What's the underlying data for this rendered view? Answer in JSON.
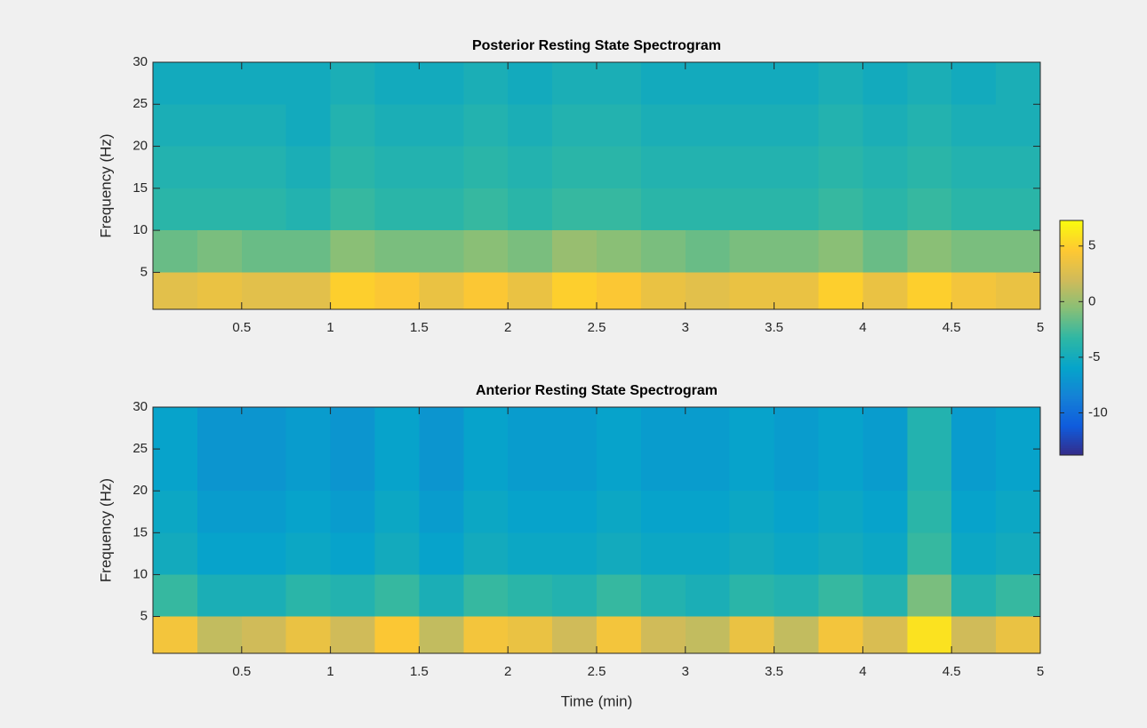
{
  "chart_data": [
    {
      "type": "heatmap",
      "title": "Posterior Resting State Spectrogram",
      "ylabel": "Frequency (Hz)",
      "xlim": [
        0,
        5
      ],
      "ylim": [
        0.6,
        30
      ],
      "xticks": [
        0.5,
        1,
        1.5,
        2,
        2.5,
        3,
        3.5,
        4,
        4.5,
        5
      ],
      "yticks": [
        5,
        10,
        15,
        20,
        25,
        30
      ],
      "xbins": [
        0,
        0.25,
        0.5,
        0.75,
        1,
        1.25,
        1.5,
        1.75,
        2,
        2.25,
        2.5,
        2.75,
        3,
        3.25,
        3.5,
        3.75,
        4,
        4.25,
        4.5,
        4.75,
        5
      ],
      "ybins": [
        0.6,
        5,
        10,
        15,
        20,
        25,
        30
      ],
      "colormap": "parula",
      "clim": [
        -13.8,
        7.3
      ],
      "colorbar_ticks": [
        -10,
        -5,
        0,
        5
      ],
      "values": [
        [
          3,
          3.5,
          3,
          3,
          5,
          4.5,
          3.5,
          4.5,
          3.5,
          5,
          4.5,
          3.5,
          3,
          3.5,
          3.5,
          5,
          3.5,
          5,
          4,
          3.5
        ],
        [
          -1.5,
          -1,
          -1.5,
          -1.5,
          -0.5,
          -1,
          -1,
          -0.5,
          -1,
          0,
          -0.5,
          -1,
          -1.5,
          -1,
          -1,
          -0.5,
          -1.5,
          -0.5,
          -1,
          -1
        ],
        [
          -3.5,
          -3.5,
          -3.5,
          -4,
          -3,
          -3.5,
          -3.5,
          -3,
          -3.5,
          -3,
          -3,
          -3.5,
          -3.5,
          -3.5,
          -3.5,
          -3,
          -3.5,
          -3,
          -3.5,
          -3.5
        ],
        [
          -4,
          -4,
          -4,
          -4.5,
          -3.5,
          -4,
          -4,
          -3.5,
          -4,
          -3.5,
          -3.5,
          -4,
          -4,
          -4,
          -4,
          -3.5,
          -4,
          -3.5,
          -4,
          -4
        ],
        [
          -4.5,
          -4.5,
          -4.5,
          -5,
          -4,
          -4.5,
          -4.5,
          -4,
          -4.5,
          -4,
          -4,
          -4.5,
          -4.5,
          -4.5,
          -4.5,
          -4,
          -4.5,
          -4,
          -4.5,
          -4.5
        ],
        [
          -5,
          -5,
          -5,
          -5,
          -4.5,
          -5,
          -5,
          -4.5,
          -5,
          -4.5,
          -4.5,
          -5,
          -5,
          -5,
          -5,
          -4.5,
          -5,
          -4.5,
          -5,
          -4.5
        ]
      ]
    },
    {
      "type": "heatmap",
      "title": "Anterior Resting State Spectrogram",
      "ylabel": "Frequency (Hz)",
      "xlabel": "Time (min)",
      "xlim": [
        0,
        5
      ],
      "ylim": [
        0.6,
        30
      ],
      "xticks": [
        0.5,
        1,
        1.5,
        2,
        2.5,
        3,
        3.5,
        4,
        4.5,
        5
      ],
      "yticks": [
        5,
        10,
        15,
        20,
        25,
        30
      ],
      "xbins": [
        0,
        0.25,
        0.5,
        0.75,
        1,
        1.25,
        1.5,
        1.75,
        2,
        2.25,
        2.5,
        2.75,
        3,
        3.25,
        3.5,
        3.75,
        4,
        4.25,
        4.5,
        4.75,
        5
      ],
      "ybins": [
        0.6,
        5,
        10,
        15,
        20,
        25,
        30
      ],
      "colormap": "parula",
      "clim": [
        -13.8,
        7.3
      ],
      "values": [
        [
          4,
          1.5,
          2,
          3.5,
          2,
          4.5,
          1.5,
          4,
          3.5,
          2,
          4,
          2,
          1.5,
          3.5,
          1.5,
          4,
          2.5,
          6,
          2,
          3.5
        ],
        [
          -3,
          -4.5,
          -4.5,
          -3.5,
          -4,
          -3,
          -4.5,
          -3,
          -3.5,
          -4,
          -3,
          -4,
          -4.5,
          -3.5,
          -4,
          -3,
          -4,
          -1,
          -4,
          -3
        ],
        [
          -5,
          -6,
          -6,
          -5.5,
          -6,
          -5,
          -6,
          -5,
          -5.5,
          -5.5,
          -5,
          -5.5,
          -5.5,
          -5,
          -5.5,
          -5,
          -5.5,
          -3,
          -5.5,
          -5
        ],
        [
          -5.5,
          -6.5,
          -6.5,
          -6,
          -6.5,
          -5.5,
          -6.5,
          -5.5,
          -6,
          -6,
          -5.5,
          -6,
          -6,
          -5.5,
          -6,
          -5.5,
          -6,
          -3.5,
          -6,
          -5.5
        ],
        [
          -6,
          -7,
          -7,
          -6.5,
          -7,
          -6,
          -7,
          -6,
          -6.5,
          -6.5,
          -6,
          -6.5,
          -6.5,
          -6,
          -6.5,
          -6,
          -6.5,
          -4,
          -6.5,
          -6
        ],
        [
          -6,
          -7,
          -7,
          -6.5,
          -7,
          -6,
          -7,
          -6,
          -6.5,
          -6.5,
          -6,
          -6.5,
          -6.5,
          -6,
          -6.5,
          -6,
          -6.5,
          -4,
          -6.5,
          -6
        ]
      ]
    }
  ]
}
